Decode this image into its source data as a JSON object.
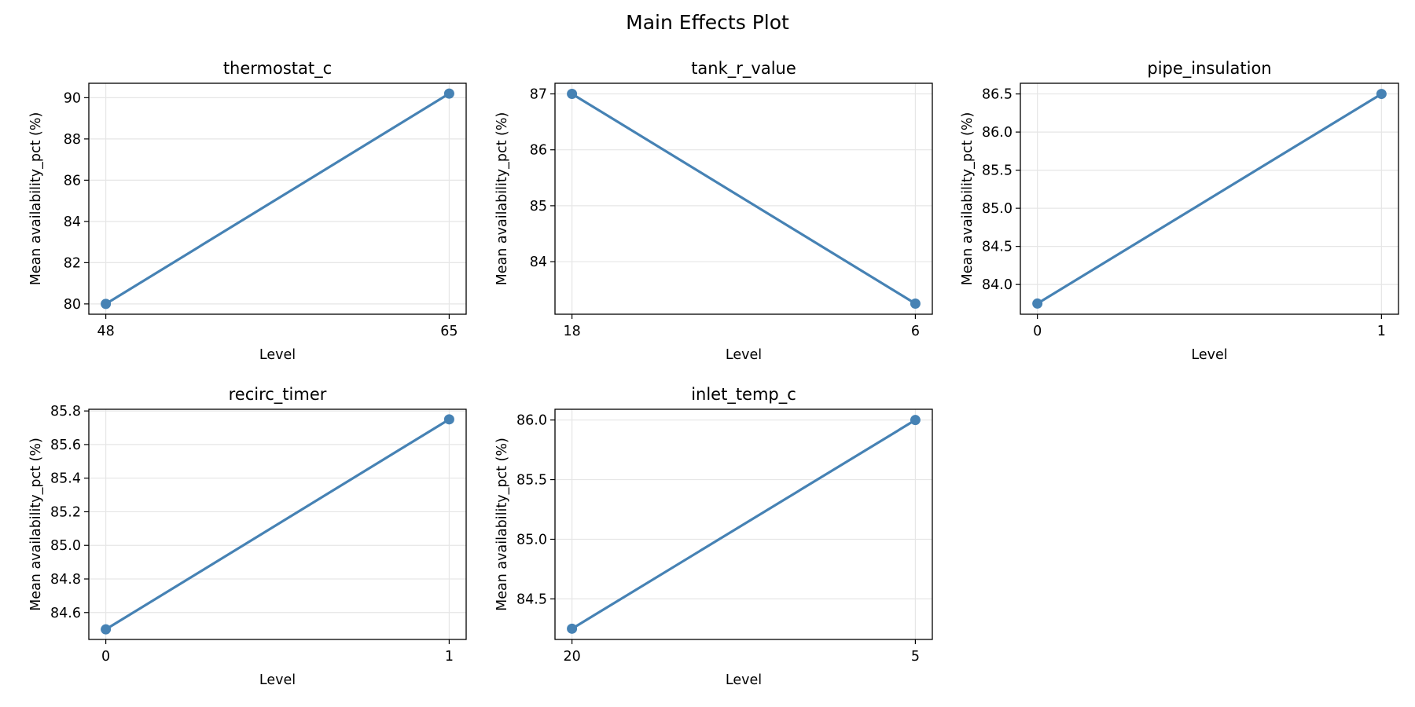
{
  "figure_title": "Main Effects Plot",
  "colors": {
    "line": "#4682b4",
    "grid": "#e6e6e6",
    "axes": "#000000"
  },
  "chart_data": [
    {
      "type": "line",
      "title": "thermostat_c",
      "xlabel": "Level",
      "ylabel": "Mean availability_pct (%)",
      "categories": [
        "48",
        "65"
      ],
      "values": [
        80.0,
        90.2
      ],
      "ylim": [
        79.5,
        90.7
      ],
      "yticks": [
        80,
        82,
        84,
        86,
        88,
        90
      ],
      "ytick_labels": [
        "80",
        "82",
        "84",
        "86",
        "88",
        "90"
      ],
      "grid": true
    },
    {
      "type": "line",
      "title": "tank_r_value",
      "xlabel": "Level",
      "ylabel": "Mean availability_pct (%)",
      "categories": [
        "18",
        "6"
      ],
      "values": [
        87.0,
        83.25
      ],
      "ylim": [
        83.06,
        87.19
      ],
      "yticks": [
        84,
        85,
        86,
        87
      ],
      "ytick_labels": [
        "84",
        "85",
        "86",
        "87"
      ],
      "grid": true
    },
    {
      "type": "line",
      "title": "pipe_insulation",
      "xlabel": "Level",
      "ylabel": "Mean availability_pct (%)",
      "categories": [
        "0",
        "1"
      ],
      "values": [
        83.75,
        86.5
      ],
      "ylim": [
        83.61,
        86.64
      ],
      "yticks": [
        84.0,
        84.5,
        85.0,
        85.5,
        86.0,
        86.5
      ],
      "ytick_labels": [
        "84.0",
        "84.5",
        "85.0",
        "85.5",
        "86.0",
        "86.5"
      ],
      "grid": true
    },
    {
      "type": "line",
      "title": "recirc_timer",
      "xlabel": "Level",
      "ylabel": "Mean availability_pct (%)",
      "categories": [
        "0",
        "1"
      ],
      "values": [
        84.5,
        85.75
      ],
      "ylim": [
        84.44,
        85.81
      ],
      "yticks": [
        84.6,
        84.8,
        85.0,
        85.2,
        85.4,
        85.6,
        85.8
      ],
      "ytick_labels": [
        "84.6",
        "84.8",
        "85.0",
        "85.2",
        "85.4",
        "85.6",
        "85.8"
      ],
      "grid": true
    },
    {
      "type": "line",
      "title": "inlet_temp_c",
      "xlabel": "Level",
      "ylabel": "Mean availability_pct (%)",
      "categories": [
        "20",
        "5"
      ],
      "values": [
        84.25,
        86.0
      ],
      "ylim": [
        84.16,
        86.09
      ],
      "yticks": [
        84.5,
        85.0,
        85.5,
        86.0
      ],
      "ytick_labels": [
        "84.5",
        "85.0",
        "85.5",
        "86.0"
      ],
      "grid": true
    }
  ]
}
